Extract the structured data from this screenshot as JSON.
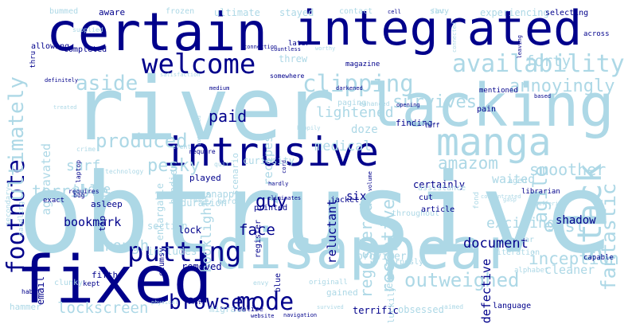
{
  "colors": {
    "dark": "#00008b",
    "light": "#add8e6",
    "background": "#ffffff"
  },
  "words": [
    {
      "text": "obtrusive",
      "tone": "light"
    },
    {
      "text": "river",
      "tone": "light"
    },
    {
      "text": "certain",
      "tone": "dark"
    },
    {
      "text": "integrated",
      "tone": "dark"
    },
    {
      "text": "lacking",
      "tone": "light"
    },
    {
      "text": "disappear",
      "tone": "light"
    },
    {
      "text": "fixed",
      "tone": "dark"
    },
    {
      "text": "intrusive",
      "tone": "dark"
    },
    {
      "text": "manga",
      "tone": "light"
    },
    {
      "text": "welcome",
      "tone": "dark"
    },
    {
      "text": "availability",
      "tone": "light"
    },
    {
      "text": "clipping",
      "tone": "light"
    },
    {
      "text": "stack",
      "tone": "light"
    },
    {
      "text": "outweighed",
      "tone": "light"
    },
    {
      "text": "fantastic",
      "tone": "light"
    },
    {
      "text": "mode",
      "tone": "dark"
    },
    {
      "text": "putting",
      "tone": "dark"
    },
    {
      "text": "browser",
      "tone": "dark"
    },
    {
      "text": "footnote",
      "tone": "dark"
    },
    {
      "text": "ultimately",
      "tone": "light"
    },
    {
      "text": "aside",
      "tone": "light"
    },
    {
      "text": "survives",
      "tone": "light"
    },
    {
      "text": "annoyingly",
      "tone": "light"
    },
    {
      "text": "produced",
      "tone": "light"
    },
    {
      "text": "pesky",
      "tone": "light"
    },
    {
      "text": "lightened",
      "tone": "light"
    },
    {
      "text": "forty",
      "tone": "light"
    },
    {
      "text": "agile",
      "tone": "light"
    },
    {
      "text": "amazom",
      "tone": "light"
    },
    {
      "text": "smoother",
      "tone": "light"
    },
    {
      "text": "east",
      "tone": "light"
    },
    {
      "text": "receptive",
      "tone": "light"
    },
    {
      "text": "paid",
      "tone": "dark"
    },
    {
      "text": "guy",
      "tone": "dark"
    },
    {
      "text": "face",
      "tone": "dark"
    },
    {
      "text": "document",
      "tone": "dark"
    },
    {
      "text": "inception",
      "tone": "light"
    },
    {
      "text": "exciting",
      "tone": "light"
    },
    {
      "text": "registered",
      "tone": "light"
    },
    {
      "text": "rough",
      "tone": "light"
    },
    {
      "text": "lockscreen",
      "tone": "light"
    },
    {
      "text": "booklights",
      "tone": "light"
    },
    {
      "text": "terrible",
      "tone": "light"
    },
    {
      "text": "medical",
      "tone": "light"
    },
    {
      "text": "surf",
      "tone": "light"
    },
    {
      "text": "alone",
      "tone": "light"
    },
    {
      "text": "aggravated",
      "tone": "light"
    },
    {
      "text": "recipes",
      "tone": "light"
    },
    {
      "text": "scenario",
      "tone": "light"
    },
    {
      "text": "bookmark",
      "tone": "dark"
    },
    {
      "text": "shadow",
      "tone": "dark"
    },
    {
      "text": "waited",
      "tone": "light"
    },
    {
      "text": "section",
      "tone": "light"
    },
    {
      "text": "reluctant",
      "tone": "dark"
    },
    {
      "text": "six",
      "tone": "dark"
    },
    {
      "text": "provider",
      "tone": "light"
    },
    {
      "text": "exceeds",
      "tone": "light"
    },
    {
      "text": "defective",
      "tone": "dark"
    },
    {
      "text": "cleaner",
      "tone": "light"
    },
    {
      "text": "terrific",
      "tone": "dark"
    },
    {
      "text": "obsessed",
      "tone": "light"
    },
    {
      "text": "migrate",
      "tone": "light"
    },
    {
      "text": "hammer",
      "tone": "light"
    },
    {
      "text": "website",
      "tone": "dark"
    },
    {
      "text": "navigation",
      "tone": "dark"
    },
    {
      "text": "gained",
      "tone": "light"
    },
    {
      "text": "luckily",
      "tone": "light"
    },
    {
      "text": "language",
      "tone": "dark"
    },
    {
      "text": "ultimate",
      "tone": "light"
    },
    {
      "text": "stayed",
      "tone": "light"
    },
    {
      "text": "aware",
      "tone": "dark"
    },
    {
      "text": "bummed",
      "tone": "light"
    },
    {
      "text": "frozen",
      "tone": "light"
    },
    {
      "text": "contact",
      "tone": "light"
    },
    {
      "text": "savy",
      "tone": "light"
    },
    {
      "text": "experiencing",
      "tone": "light"
    },
    {
      "text": "selecting",
      "tone": "dark"
    },
    {
      "text": "cell",
      "tone": "dark"
    },
    {
      "text": "magazine",
      "tone": "dark"
    },
    {
      "text": "threw",
      "tone": "light"
    },
    {
      "text": "somewhere",
      "tone": "dark"
    },
    {
      "text": "doze",
      "tone": "light"
    },
    {
      "text": "mentioned",
      "tone": "dark"
    },
    {
      "text": "pain",
      "tone": "dark"
    },
    {
      "text": "paging",
      "tone": "light"
    },
    {
      "text": "finding",
      "tone": "dark"
    },
    {
      "text": "asleep",
      "tone": "dark"
    },
    {
      "text": "duration",
      "tone": "light"
    },
    {
      "text": "handier",
      "tone": "light"
    },
    {
      "text": "curiosity",
      "tone": "light"
    },
    {
      "text": "hero",
      "tone": "light"
    },
    {
      "text": "printed",
      "tone": "dark"
    },
    {
      "text": "played",
      "tone": "dark"
    },
    {
      "text": "snappy",
      "tone": "light"
    },
    {
      "text": "lock",
      "tone": "dark"
    },
    {
      "text": "jacket",
      "tone": "dark"
    },
    {
      "text": "throughout",
      "tone": "light"
    },
    {
      "text": "certainly",
      "tone": "dark"
    },
    {
      "text": "enlargable",
      "tone": "light"
    },
    {
      "text": "includes",
      "tone": "light"
    },
    {
      "text": "tip",
      "tone": "dark"
    },
    {
      "text": "removed",
      "tone": "dark"
    },
    {
      "text": "kept",
      "tone": "dark"
    },
    {
      "text": "email",
      "tone": "dark"
    },
    {
      "text": "clunky",
      "tone": "light"
    },
    {
      "text": "fifth",
      "tone": "dark"
    },
    {
      "text": "envy",
      "tone": "light"
    },
    {
      "text": "blue",
      "tone": "dark"
    },
    {
      "text": "register",
      "tone": "dark"
    },
    {
      "text": "clumsy",
      "tone": "dark"
    },
    {
      "text": "purposly",
      "tone": "light"
    },
    {
      "text": "article",
      "tone": "dark"
    },
    {
      "text": "cut",
      "tone": "dark"
    },
    {
      "text": "aged",
      "tone": "light"
    },
    {
      "text": "fear",
      "tone": "light"
    },
    {
      "text": "iteration",
      "tone": "light"
    },
    {
      "text": "alphabet",
      "tone": "light"
    },
    {
      "text": "capable",
      "tone": "dark"
    },
    {
      "text": "across",
      "tone": "dark"
    },
    {
      "text": "leaving",
      "tone": "dark"
    },
    {
      "text": "worthy",
      "tone": "light"
    },
    {
      "text": "later",
      "tone": "dark"
    },
    {
      "text": "countless",
      "tone": "dark"
    },
    {
      "text": "connection",
      "tone": "dark"
    },
    {
      "text": "completed",
      "tone": "dark"
    },
    {
      "text": "allowing",
      "tone": "dark"
    },
    {
      "text": "thru",
      "tone": "dark"
    },
    {
      "text": "definitely",
      "tone": "dark"
    },
    {
      "text": "medium",
      "tone": "dark"
    },
    {
      "text": "darkened",
      "tone": "dark"
    },
    {
      "text": "opening",
      "tone": "dark"
    },
    {
      "text": "based",
      "tone": "dark"
    },
    {
      "text": "librarian",
      "tone": "dark"
    },
    {
      "text": "assistance",
      "tone": "light"
    },
    {
      "text": "event",
      "tone": "light"
    },
    {
      "text": "require",
      "tone": "dark"
    },
    {
      "text": "technology",
      "tone": "light"
    },
    {
      "text": "laptop",
      "tone": "dark"
    },
    {
      "text": "crime",
      "tone": "light"
    },
    {
      "text": "quit",
      "tone": "light"
    },
    {
      "text": "reach",
      "tone": "light"
    },
    {
      "text": "eliminates",
      "tone": "dark"
    },
    {
      "text": "requires",
      "tone": "dark"
    },
    {
      "text": "bug",
      "tone": "dark"
    },
    {
      "text": "exact",
      "tone": "dark"
    },
    {
      "text": "handling",
      "tone": "light"
    },
    {
      "text": "habit",
      "tone": "dark"
    },
    {
      "text": "physical",
      "tone": "light"
    },
    {
      "text": "shuts",
      "tone": "dark"
    },
    {
      "text": "realize",
      "tone": "dark"
    },
    {
      "text": "survived",
      "tone": "light"
    },
    {
      "text": "aimed",
      "tone": "light"
    },
    {
      "text": "originall",
      "tone": "light"
    },
    {
      "text": "volume",
      "tone": "dark"
    },
    {
      "text": "hardly",
      "tone": "dark"
    },
    {
      "text": "cord",
      "tone": "dark"
    },
    {
      "text": "enhanced",
      "tone": "light"
    },
    {
      "text": "input",
      "tone": "light"
    },
    {
      "text": "fond",
      "tone": "light"
    },
    {
      "text": "secondary",
      "tone": "light"
    },
    {
      "text": "supplied",
      "tone": "light"
    },
    {
      "text": "tuff",
      "tone": "dark"
    },
    {
      "text": "treated",
      "tone": "light"
    },
    {
      "text": "satisfaction",
      "tone": "light"
    },
    {
      "text": "happily",
      "tone": "light"
    },
    {
      "text": "convinced",
      "tone": "light"
    },
    {
      "text": "concentrated",
      "tone": "light"
    },
    {
      "text": "gasp",
      "tone": "light"
    },
    {
      "text": "suffering",
      "tone": "light"
    },
    {
      "text": "flat",
      "tone": "light"
    },
    {
      "text": "connected",
      "tone": "light"
    },
    {
      "text": "future",
      "tone": "light"
    },
    {
      "text": "favor",
      "tone": "light"
    }
  ]
}
